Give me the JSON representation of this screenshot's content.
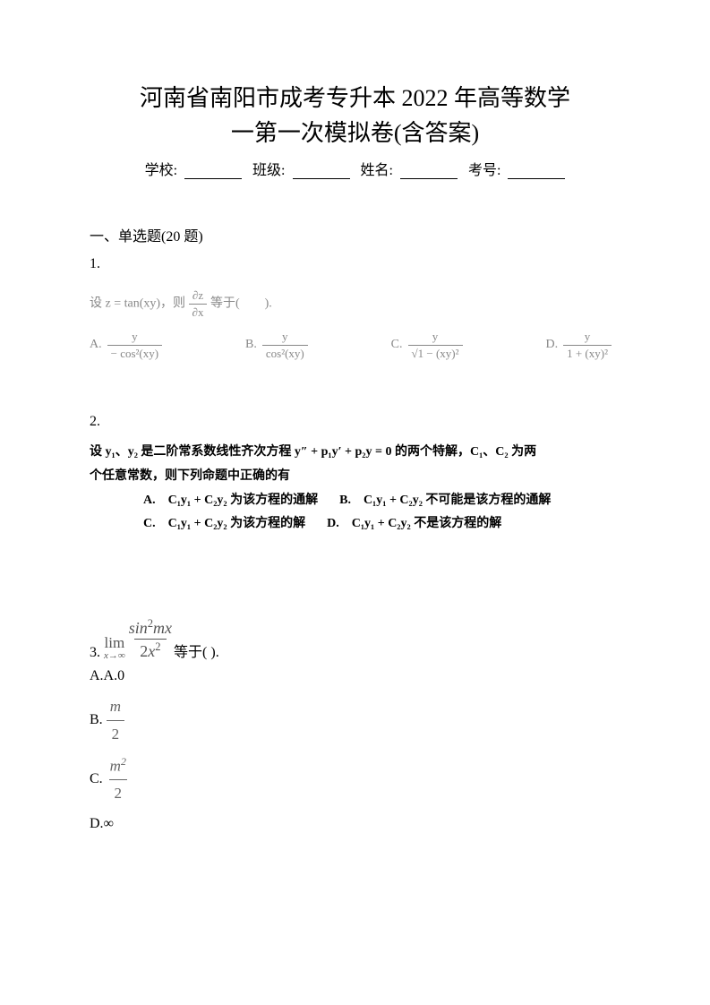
{
  "title_line1": "河南省南阳市成考专升本 2022 年高等数学",
  "title_line2": "一第一次模拟卷(含答案)",
  "info": {
    "school_label": "学校:",
    "class_label": "班级:",
    "name_label": "姓名:",
    "number_label": "考号:"
  },
  "section1": "一、单选题(20 题)",
  "q1": {
    "num": "1.",
    "prompt_prefix": "设 z = tan(xy)，则",
    "prompt_suffix": "等于(　　).",
    "partial_num": "∂z",
    "partial_den": "∂x",
    "optA_label": "A.",
    "optA_num": "y",
    "optA_den": "− cos²(xy)",
    "optB_label": "B.",
    "optB_num": "y",
    "optB_den": "cos²(xy)",
    "optC_label": "C.",
    "optC_num": "y",
    "optC_den": "√1 − (xy)²",
    "optD_label": "D.",
    "optD_num": "y",
    "optD_den": "1 + (xy)²"
  },
  "q2": {
    "num": "2.",
    "line1": "设 y₁、y₂ 是二阶常系数线性齐次方程 y″ + p₁y′ + p₂y = 0 的两个特解，C₁、C₂ 为两",
    "line2": "个任意常数，则下列命题中正确的有",
    "optA": "A.　C₁y₁ + C₂y₂ 为该方程的通解",
    "optB": "B.　C₁y₁ + C₂y₂ 不可能是该方程的通解",
    "optC": "C.　C₁y₁ + C₂y₂ 为该方程的解",
    "optD": "D.　C₁y₁ + C₂y₂ 不是该方程的解"
  },
  "q3": {
    "num": "3.",
    "lim": "lim",
    "sub": "x→∞",
    "frac_num": "sin²mx",
    "frac_den": "2x²",
    "suffix": "等于( ).",
    "optA": "A.A.0",
    "optB_label": "B.",
    "optB_num": "m",
    "optB_den": "2",
    "optC_label": "C.",
    "optC_num": "m²",
    "optC_den": "2",
    "optD": "D.∞"
  },
  "colors": {
    "text_primary": "#000000",
    "text_faded": "#888888",
    "text_math": "#555555",
    "background": "#ffffff"
  }
}
